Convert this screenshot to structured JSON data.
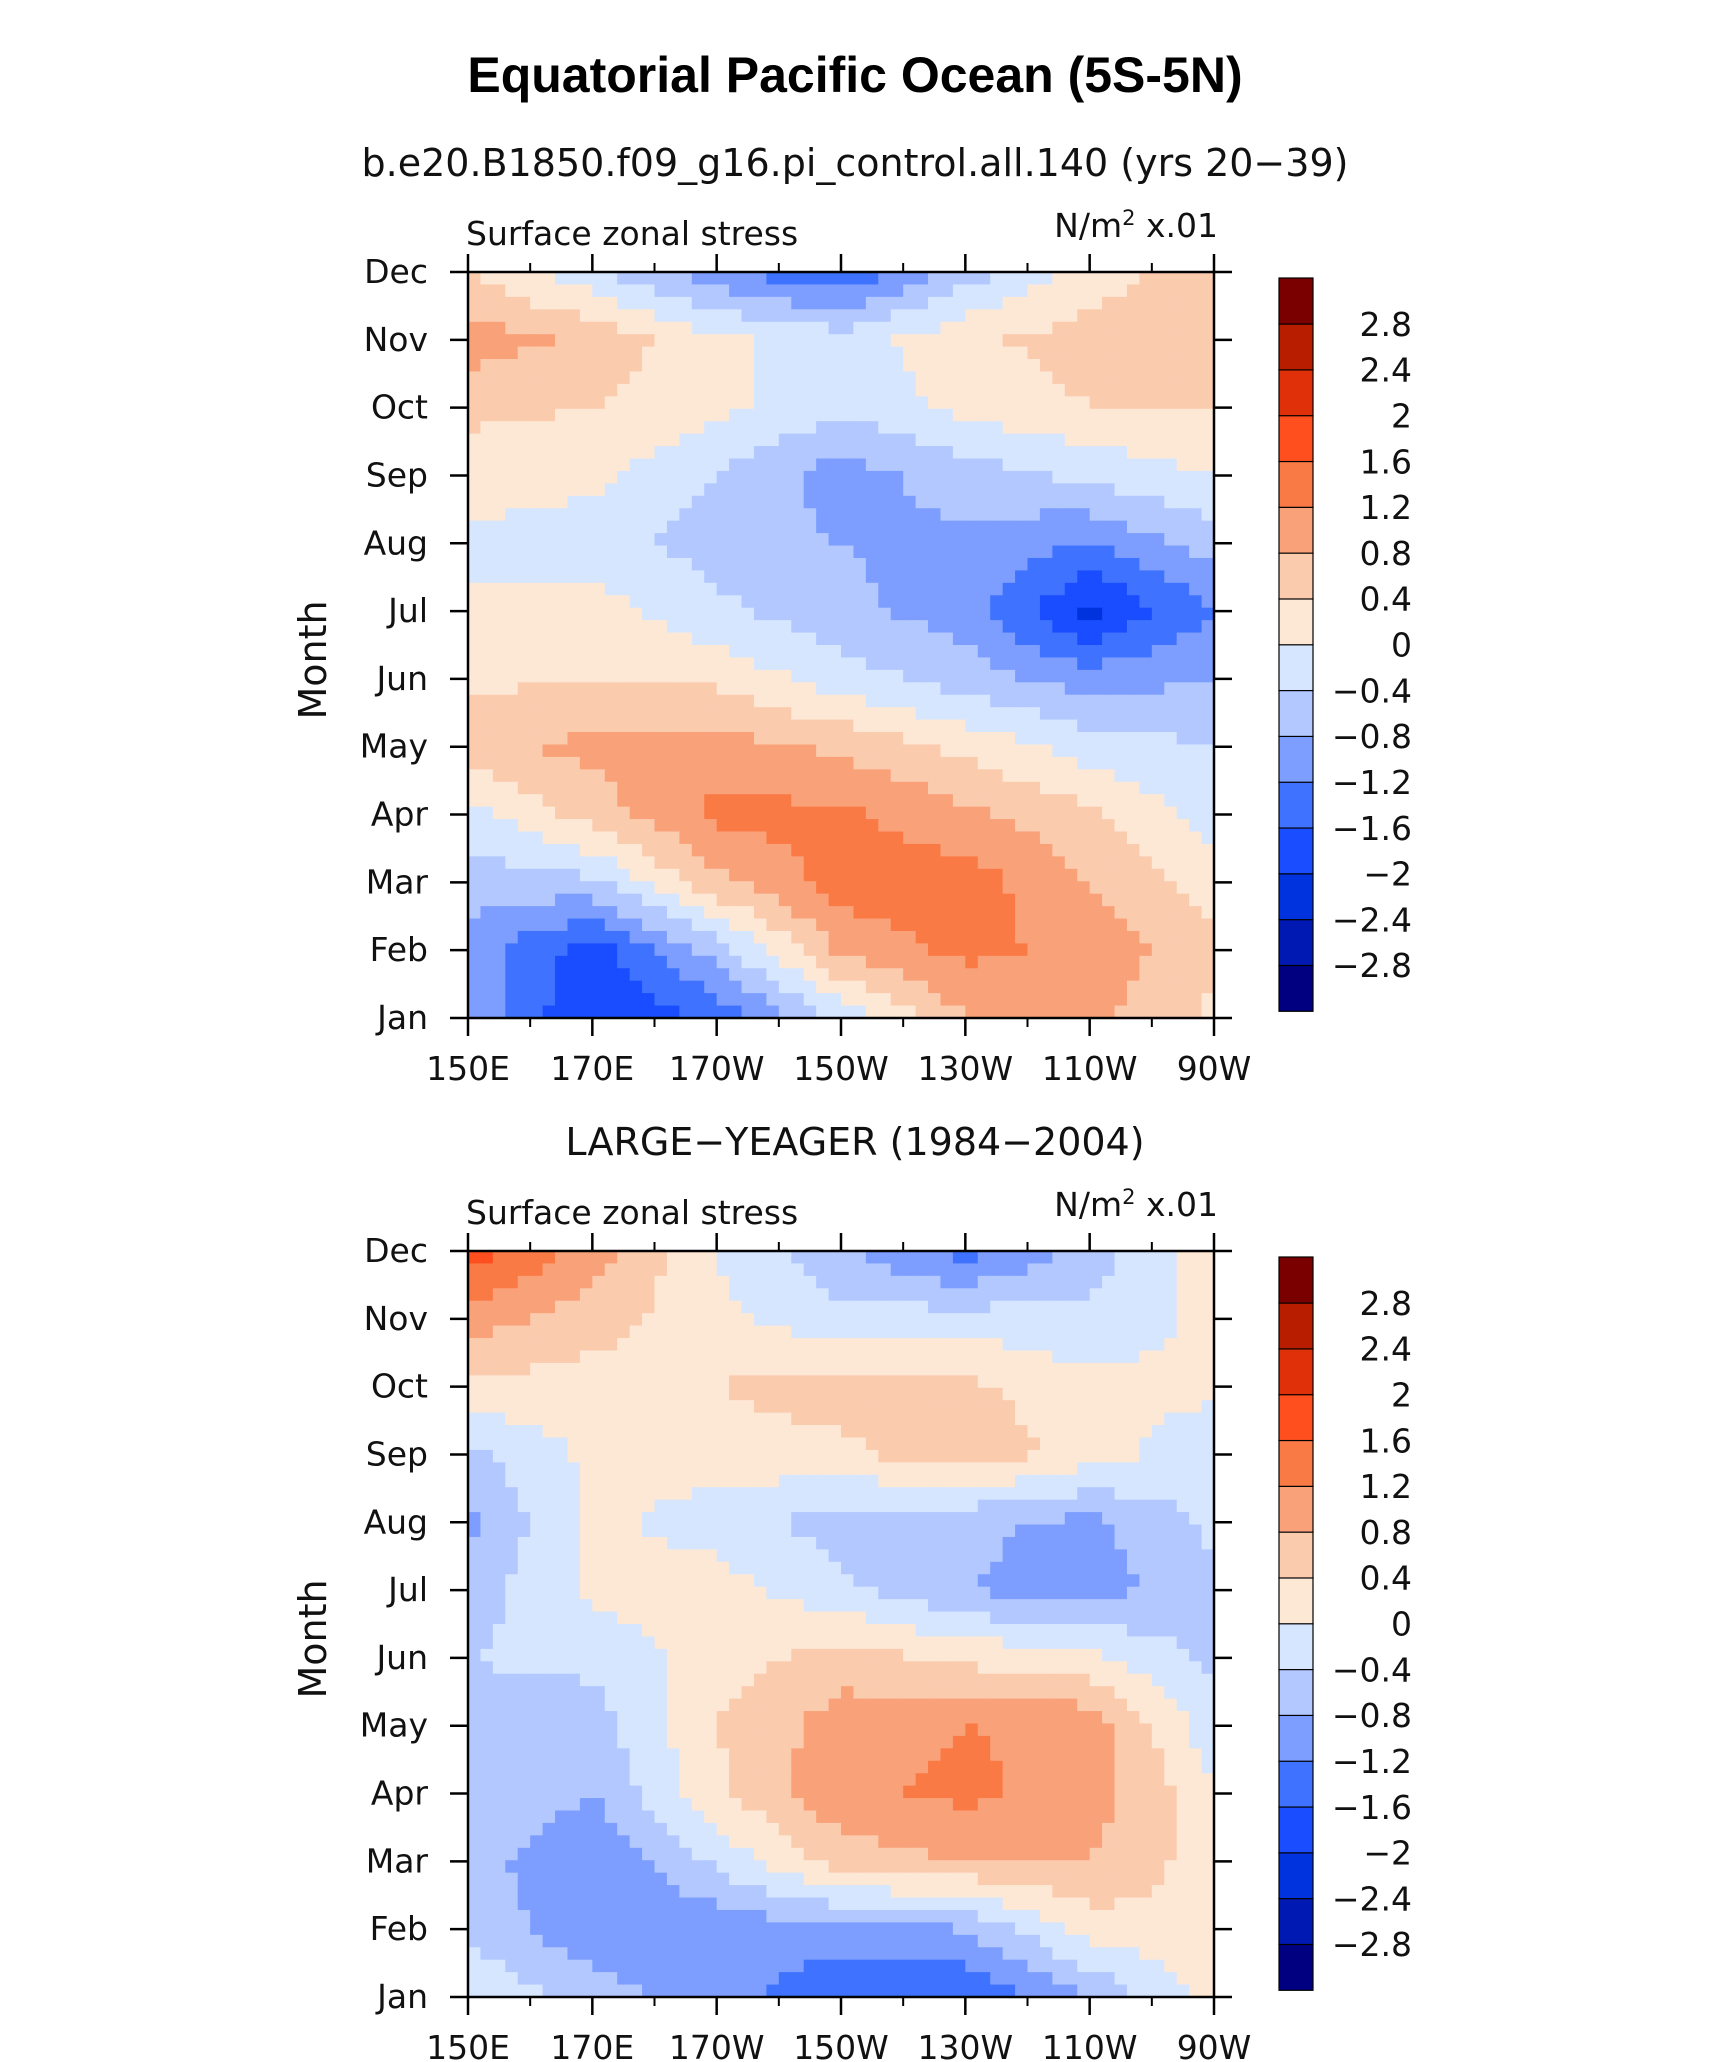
{
  "figure": {
    "title": "Equatorial Pacific Ocean (5S-5N)"
  },
  "chart_data": [
    {
      "type": "heatmap",
      "title": "b.e20.B1850.f09_g16.pi_control.all.140 (yrs 20−39)",
      "left_label": "Surface zonal stress",
      "units_prefix": "N/m",
      "units_sup": "2",
      "units_suffix": " x.01",
      "xlabel": "",
      "ylabel": "Month",
      "x": [
        "150E",
        "170E",
        "170W",
        "150W",
        "130W",
        "110W",
        "90W"
      ],
      "x_labels": [
        "150E",
        "170E",
        "170W",
        "150W",
        "130W",
        "110W",
        "90W"
      ],
      "y": [
        "Jan",
        "Feb",
        "Mar",
        "Apr",
        "May",
        "Jun",
        "Jul",
        "Aug",
        "Sep",
        "Oct",
        "Nov",
        "Dec"
      ],
      "y_labels": [
        "Jan",
        "Feb",
        "Mar",
        "Apr",
        "May",
        "Jun",
        "Jul",
        "Aug",
        "Sep",
        "Oct",
        "Nov",
        "Dec"
      ],
      "values": [
        [
          -0.9,
          -2.0,
          -1.5,
          -0.3,
          0.8,
          0.9,
          0.3
        ],
        [
          -1.0,
          -1.8,
          -0.6,
          0.9,
          1.3,
          1.1,
          0.5
        ],
        [
          -0.6,
          -0.5,
          0.7,
          1.4,
          1.4,
          0.8,
          0.2
        ],
        [
          -0.2,
          0.6,
          1.3,
          1.3,
          0.9,
          0.5,
          -0.2
        ],
        [
          0.7,
          0.9,
          1.0,
          0.7,
          0.3,
          -0.2,
          -0.4
        ],
        [
          0.3,
          0.4,
          0.3,
          -0.2,
          -0.6,
          -1.0,
          -0.8
        ],
        [
          0.1,
          0.2,
          -0.3,
          -0.7,
          -1.0,
          -2.1,
          -1.2
        ],
        [
          -0.1,
          -0.2,
          -0.6,
          -0.8,
          -0.9,
          -1.2,
          -0.6
        ],
        [
          0.2,
          0.1,
          -0.4,
          -1.0,
          -0.6,
          -0.3,
          0.0
        ],
        [
          0.5,
          0.4,
          0.1,
          -0.3,
          0.1,
          0.4,
          0.4
        ],
        [
          1.0,
          0.7,
          0.1,
          -0.2,
          0.3,
          0.6,
          0.6
        ],
        [
          0.4,
          -0.3,
          -1.1,
          -1.6,
          -0.6,
          0.2,
          0.6
        ]
      ]
    },
    {
      "type": "heatmap",
      "title": "LARGE−YEAGER (1984−2004)",
      "left_label": "Surface zonal stress",
      "units_prefix": "N/m",
      "units_sup": "2",
      "units_suffix": " x.01",
      "xlabel": "",
      "ylabel": "Month",
      "x": [
        "150E",
        "170E",
        "170W",
        "150W",
        "130W",
        "110W",
        "90W"
      ],
      "x_labels": [
        "150E",
        "170E",
        "170W",
        "150W",
        "130W",
        "110W",
        "90W"
      ],
      "y": [
        "Jan",
        "Feb",
        "Mar",
        "Apr",
        "May",
        "Jun",
        "Jul",
        "Aug",
        "Sep",
        "Oct",
        "Nov",
        "Dec"
      ],
      "y_labels": [
        "Jan",
        "Feb",
        "Mar",
        "Apr",
        "May",
        "Jun",
        "Jul",
        "Aug",
        "Sep",
        "Oct",
        "Nov",
        "Dec"
      ],
      "values": [
        [
          0.0,
          -0.6,
          -1.0,
          -1.6,
          -1.6,
          -0.8,
          0.2
        ],
        [
          -0.5,
          -1.1,
          -1.1,
          -0.9,
          -0.8,
          0.2,
          0.3
        ],
        [
          -0.6,
          -1.2,
          -0.3,
          0.6,
          0.8,
          0.8,
          0.2
        ],
        [
          -0.4,
          -0.8,
          0.3,
          1.1,
          1.3,
          1.0,
          0.1
        ],
        [
          -0.5,
          -0.6,
          0.4,
          1.0,
          1.2,
          1.1,
          -0.3
        ],
        [
          -0.4,
          -0.3,
          0.2,
          0.6,
          0.3,
          0.1,
          -0.5
        ],
        [
          -0.6,
          0.1,
          0.2,
          -0.3,
          -0.8,
          -1.0,
          -0.5
        ],
        [
          -0.9,
          0.1,
          -0.2,
          -0.6,
          -0.7,
          -0.9,
          -0.3
        ],
        [
          -0.5,
          0.1,
          0.2,
          0.3,
          0.7,
          0.2,
          -0.3
        ],
        [
          0.3,
          0.2,
          0.4,
          0.6,
          0.5,
          0.1,
          0.1
        ],
        [
          1.0,
          0.6,
          0.1,
          -0.3,
          -0.2,
          -0.3,
          0.1
        ],
        [
          1.8,
          1.0,
          0.0,
          -0.7,
          -1.4,
          -0.6,
          0.2
        ]
      ]
    }
  ],
  "colorbar": {
    "levels": [
      -2.8,
      -2.4,
      -2.0,
      -1.6,
      -1.2,
      -0.8,
      -0.4,
      0.0,
      0.4,
      0.8,
      1.2,
      1.6,
      2.0,
      2.4,
      2.8
    ],
    "labels": [
      "−2.8",
      "−2.4",
      "−2",
      "−1.6",
      "−1.2",
      "−0.8",
      "−0.4",
      "0",
      "0.4",
      "0.8",
      "1.2",
      "1.6",
      "2",
      "2.4",
      "2.8"
    ],
    "colors": [
      "#000080",
      "#0019b3",
      "#0033dd",
      "#1a4dff",
      "#3f73ff",
      "#7d9eff",
      "#b2c8ff",
      "#d6e6ff",
      "#fde8d6",
      "#fbcbae",
      "#f9a27a",
      "#fa7a46",
      "#ff4f1f",
      "#e0300a",
      "#b81d00",
      "#7a0000"
    ]
  }
}
